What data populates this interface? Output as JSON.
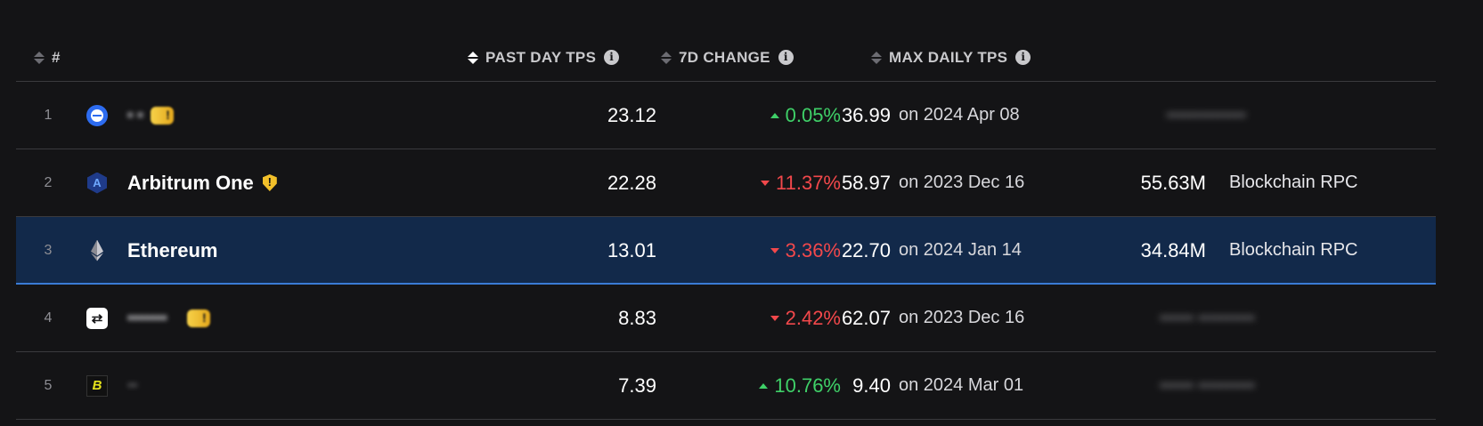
{
  "header": {
    "rank_label": "#",
    "past_day_tps_label": "PAST DAY TPS",
    "change_label": "7D CHANGE",
    "max_daily_tps_label": "MAX DAILY TPS"
  },
  "colors": {
    "positive": "#3fd068",
    "negative": "#f2484b",
    "selected_row": "#12294a",
    "selected_border": "#3a7bd5"
  },
  "rows": [
    {
      "rank": "1",
      "logo": "dash-circle-logo",
      "name": "",
      "name_redacted": true,
      "has_warning_badge": true,
      "past_day_tps": "23.12",
      "change_direction": "up",
      "change": "0.05%",
      "max_tps": "36.99",
      "max_date": "on 2024 Apr 08",
      "volume": "",
      "source": "",
      "redacted_right": true
    },
    {
      "rank": "2",
      "logo": "arbitrum-logo",
      "name": "Arbitrum One",
      "has_shield": true,
      "past_day_tps": "22.28",
      "change_direction": "down",
      "change": "11.37%",
      "max_tps": "58.97",
      "max_date": "on 2023 Dec 16",
      "volume": "55.63M",
      "source": "Blockchain RPC"
    },
    {
      "rank": "3",
      "logo": "ethereum-logo",
      "name": "Ethereum",
      "selected": true,
      "past_day_tps": "13.01",
      "change_direction": "down",
      "change": "3.36%",
      "max_tps": "22.70",
      "max_date": "on 2024 Jan 14",
      "volume": "34.84M",
      "source": "Blockchain RPC"
    },
    {
      "rank": "4",
      "logo": "swap-logo",
      "name": "",
      "name_redacted": true,
      "has_warning_badge": true,
      "past_day_tps": "8.83",
      "change_direction": "down",
      "change": "2.42%",
      "max_tps": "62.07",
      "max_date": "on 2023 Dec 16",
      "volume": "",
      "source": "",
      "redacted_right": true
    },
    {
      "rank": "5",
      "logo": "b-logo",
      "name": "",
      "name_redacted": true,
      "past_day_tps": "7.39",
      "change_direction": "up",
      "change": "10.76%",
      "max_tps": "9.40",
      "max_date": "on 2024 Mar 01",
      "volume": "",
      "source": "",
      "redacted_right": true
    }
  ]
}
